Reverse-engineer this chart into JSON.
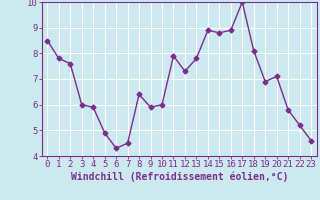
{
  "x": [
    0,
    1,
    2,
    3,
    4,
    5,
    6,
    7,
    8,
    9,
    10,
    11,
    12,
    13,
    14,
    15,
    16,
    17,
    18,
    19,
    20,
    21,
    22,
    23
  ],
  "y": [
    8.5,
    7.8,
    7.6,
    6.0,
    5.9,
    4.9,
    4.3,
    4.5,
    6.4,
    5.9,
    6.0,
    7.9,
    7.3,
    7.8,
    8.9,
    8.8,
    8.9,
    10.0,
    8.1,
    6.9,
    7.1,
    5.8,
    5.2,
    4.6
  ],
  "line_color": "#7b2d8b",
  "marker": "D",
  "marker_size": 2.5,
  "line_width": 1.0,
  "bg_color": "#cce9f0",
  "grid_color": "#ffffff",
  "xlabel": "Windchill (Refroidissement éolien,°C)",
  "xlabel_color": "#7b2d8b",
  "tick_color": "#7b2d8b",
  "ylim": [
    4,
    10
  ],
  "xlim": [
    -0.5,
    23.5
  ],
  "yticks": [
    4,
    5,
    6,
    7,
    8,
    9,
    10
  ],
  "xticks": [
    0,
    1,
    2,
    3,
    4,
    5,
    6,
    7,
    8,
    9,
    10,
    11,
    12,
    13,
    14,
    15,
    16,
    17,
    18,
    19,
    20,
    21,
    22,
    23
  ],
  "xtick_labels": [
    "0",
    "1",
    "2",
    "3",
    "4",
    "5",
    "6",
    "7",
    "8",
    "9",
    "10",
    "11",
    "12",
    "13",
    "14",
    "15",
    "16",
    "17",
    "18",
    "19",
    "20",
    "21",
    "22",
    "23"
  ],
  "spine_color": "#7b2d8b",
  "xlabel_fontsize": 7.0,
  "tick_fontsize": 6.5
}
